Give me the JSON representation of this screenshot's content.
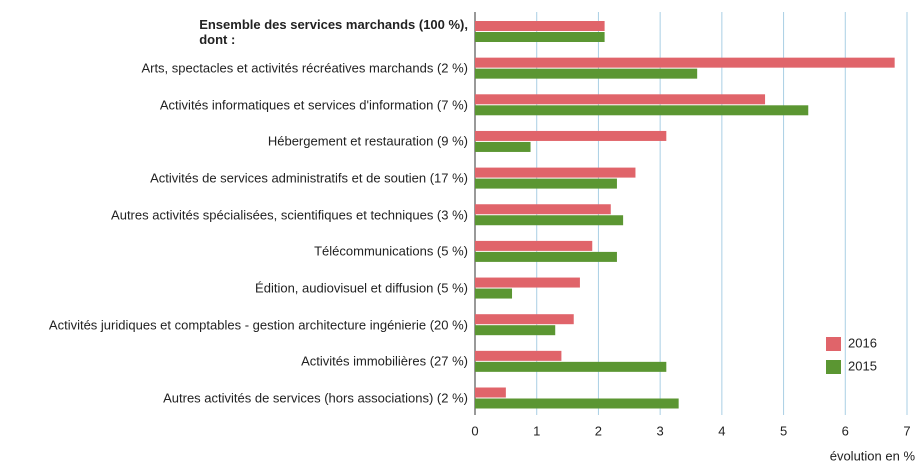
{
  "chart_data": {
    "type": "bar",
    "orientation": "horizontal",
    "categories": [
      "Ensemble des services marchands (100 %),\ndont :",
      "Arts, spectacles et activités récréatives marchands (2 %)",
      "Activités informatiques et services d'information (7 %)",
      "Hébergement et restauration (9 %)",
      "Activités de services administratifs et de soutien (17 %)",
      "Autres activités spécialisées, scientifiques et techniques (3 %)",
      "Télécommunications (5 %)",
      "Édition, audiovisuel et diffusion (5 %)",
      "Activités juridiques et comptables - gestion architecture ingénierie (20 %)",
      "Activités immobilières (27 %)",
      "Autres activités de services (hors associations) (2 %)"
    ],
    "series": [
      {
        "name": "2016",
        "color": "#e0646a",
        "values": [
          2.1,
          6.8,
          4.7,
          3.1,
          2.6,
          2.2,
          1.9,
          1.7,
          1.6,
          1.4,
          0.5
        ]
      },
      {
        "name": "2015",
        "color": "#5b9632",
        "values": [
          2.1,
          3.6,
          5.4,
          0.9,
          2.3,
          2.4,
          2.3,
          0.6,
          1.3,
          3.1,
          3.3
        ]
      }
    ],
    "xlim": [
      0,
      7
    ],
    "xticks": [
      0,
      1,
      2,
      3,
      4,
      5,
      6,
      7
    ],
    "xlabel": "évolution en %",
    "grid": true,
    "legend": "lower right"
  }
}
